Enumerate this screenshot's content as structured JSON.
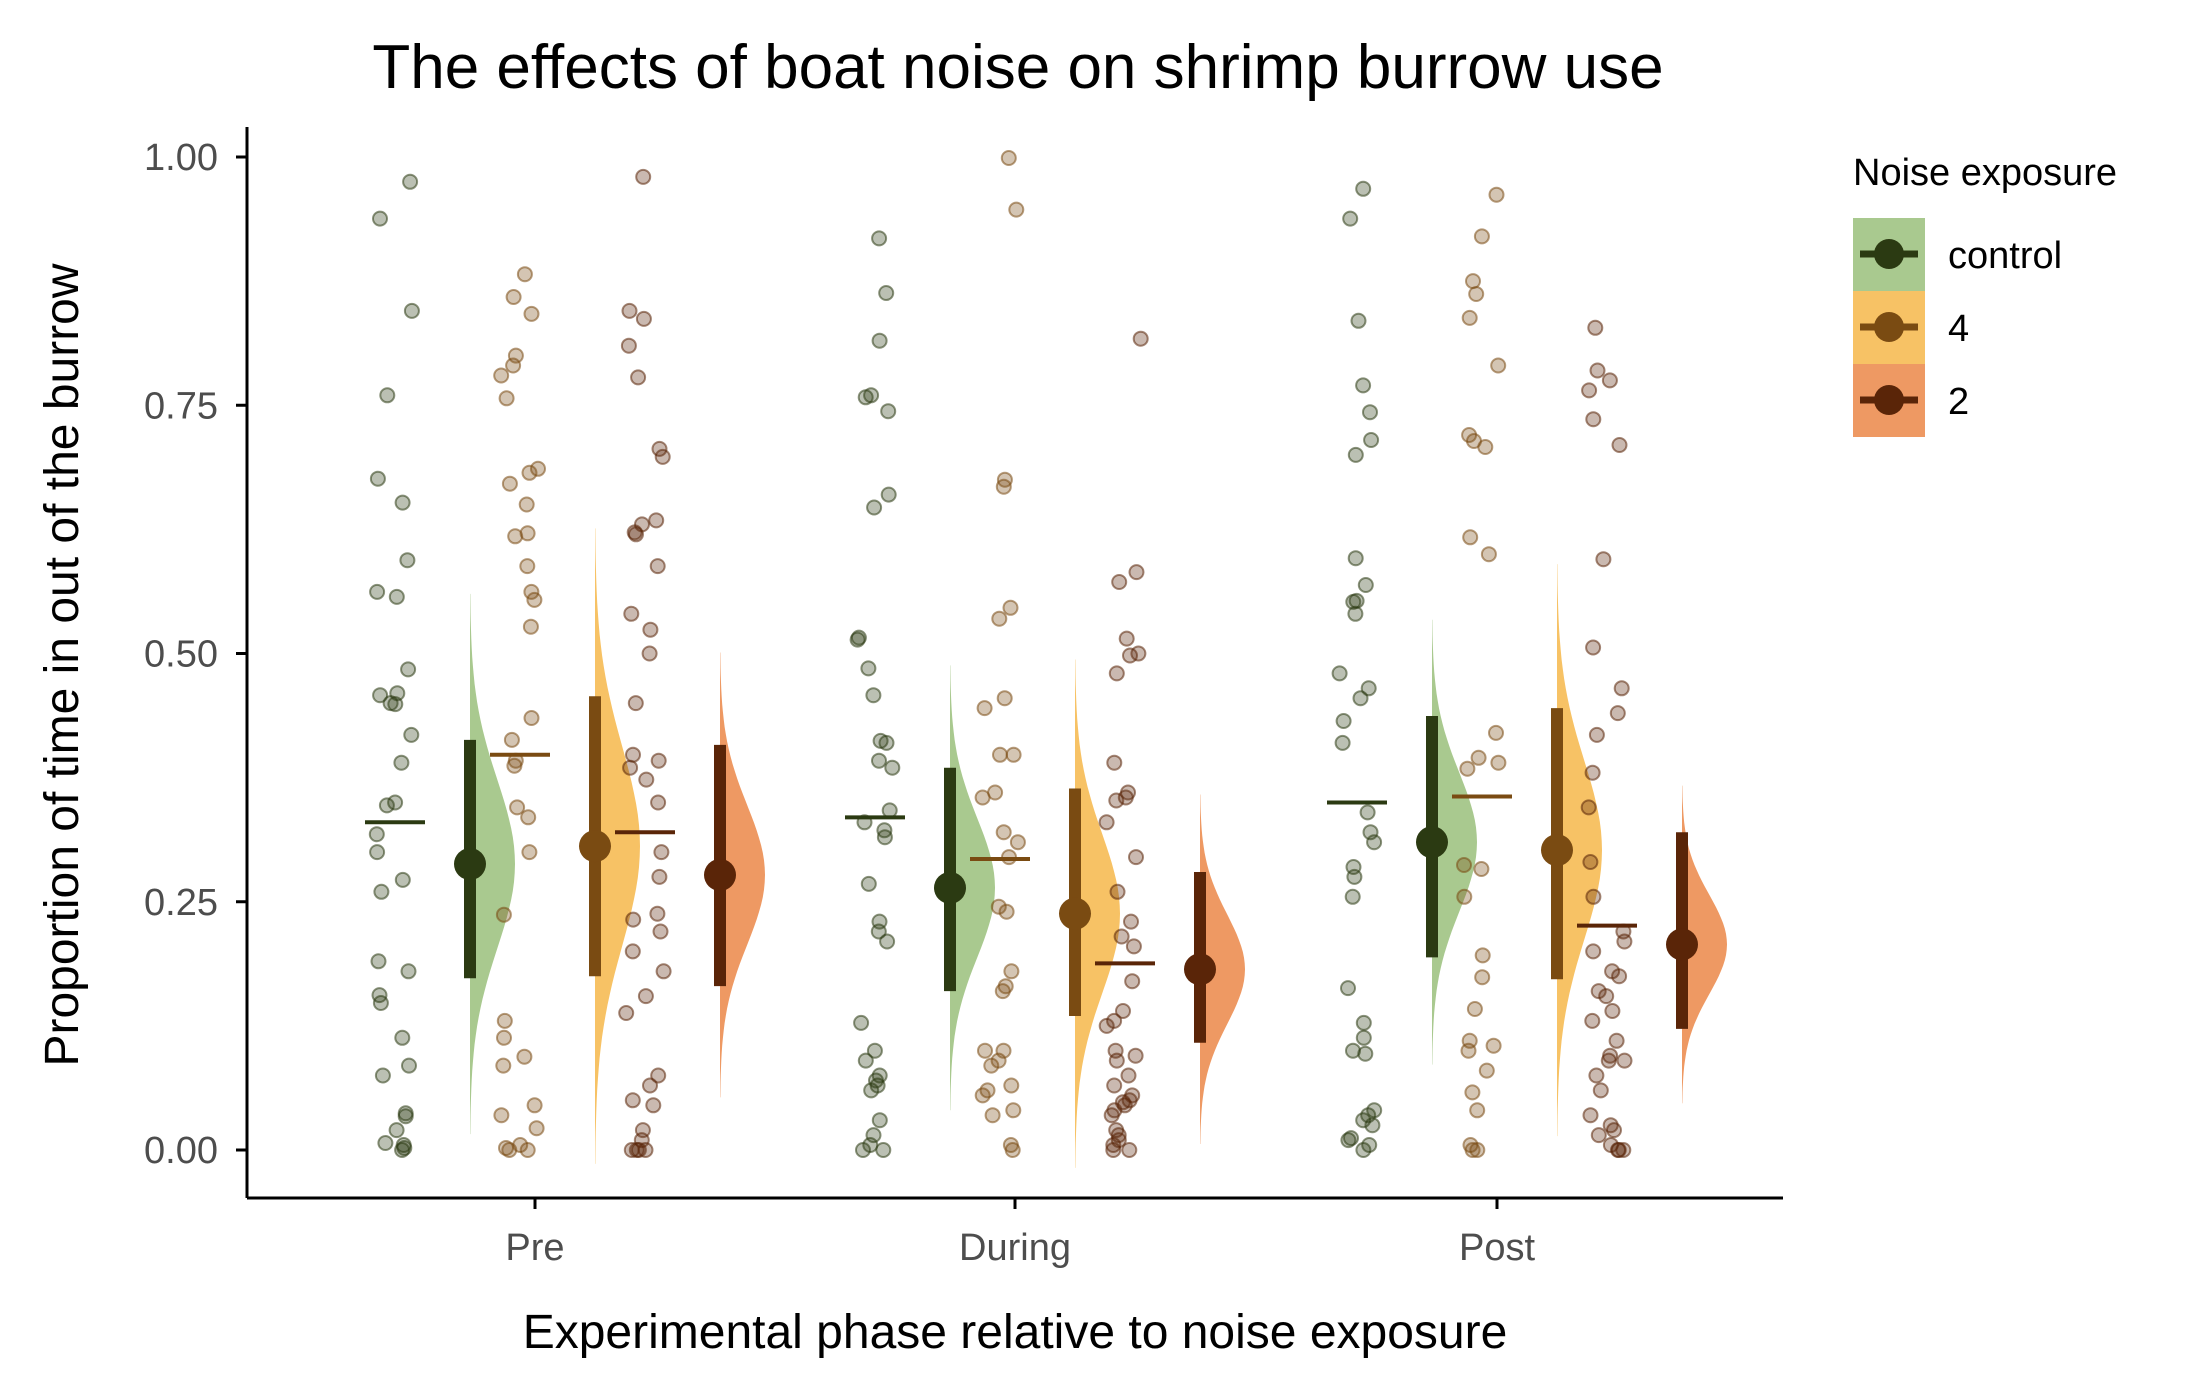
{
  "chart_data": {
    "type": "raincloud",
    "title": "The effects of boat noise on shrimp burrow use",
    "xlabel": "Experimental phase relative to noise exposure",
    "ylabel": "Proportion of time in out of the burrow",
    "categories": [
      "Pre",
      "During",
      "Post"
    ],
    "ylim": [
      0,
      1
    ],
    "yticks": [
      "0.00",
      "0.25",
      "0.50",
      "0.75",
      "1.00"
    ],
    "ytick_values": [
      0,
      0.25,
      0.5,
      0.75,
      1.0
    ],
    "grid": false,
    "legend": {
      "title": "Noise exposure",
      "position": "right"
    },
    "series": [
      {
        "name": "control",
        "fill": "#a9c98f",
        "color": "#2b3a12",
        "mean": [
          0.33,
          0.335,
          0.35
        ],
        "median": [
          0.288,
          0.264,
          0.31
        ],
        "interval_low": [
          0.173,
          0.16,
          0.194
        ],
        "interval_high": [
          0.413,
          0.385,
          0.437
        ],
        "density_sd": [
          0.085,
          0.07,
          0.07
        ],
        "points": [
          [
            0.975,
            0.938,
            0.845,
            0.76,
            0.676,
            0.652,
            0.594,
            0.562,
            0.557,
            0.484,
            0.46,
            0.458,
            0.45,
            0.449,
            0.418,
            0.39,
            0.35,
            0.347,
            0.318,
            0.3,
            0.272,
            0.26,
            0.19,
            0.18,
            0.156,
            0.148,
            0.113,
            0.085,
            0.075,
            0.037,
            0.034,
            0.02,
            0.007,
            0.005,
            0.002,
            0.0
          ],
          [
            0.918,
            0.863,
            0.815,
            0.76,
            0.758,
            0.744,
            0.66,
            0.647,
            0.516,
            0.514,
            0.485,
            0.458,
            0.412,
            0.41,
            0.392,
            0.385,
            0.342,
            0.33,
            0.322,
            0.315,
            0.268,
            0.23,
            0.22,
            0.21,
            0.128,
            0.1,
            0.09,
            0.075,
            0.07,
            0.065,
            0.06,
            0.03,
            0.015,
            0.005,
            0.0,
            0.0
          ],
          [
            0.968,
            0.938,
            0.835,
            0.77,
            0.743,
            0.715,
            0.7,
            0.596,
            0.569,
            0.553,
            0.552,
            0.54,
            0.48,
            0.465,
            0.455,
            0.432,
            0.41,
            0.34,
            0.32,
            0.31,
            0.285,
            0.275,
            0.255,
            0.163,
            0.128,
            0.113,
            0.1,
            0.097,
            0.04,
            0.035,
            0.03,
            0.025,
            0.012,
            0.01,
            0.005,
            0.0
          ]
        ]
      },
      {
        "name": "4",
        "fill": "#f7c265",
        "color": "#7a4b12",
        "mean": [
          0.398,
          0.293,
          0.356
        ],
        "median": [
          0.306,
          0.238,
          0.302
        ],
        "interval_low": [
          0.175,
          0.135,
          0.172
        ],
        "interval_high": [
          0.457,
          0.364,
          0.445
        ],
        "density_sd": [
          0.1,
          0.08,
          0.09
        ],
        "points": [
          [
            0.882,
            0.859,
            0.842,
            0.8,
            0.79,
            0.78,
            0.757,
            0.686,
            0.682,
            0.671,
            0.65,
            0.621,
            0.618,
            0.588,
            0.562,
            0.554,
            0.527,
            0.435,
            0.413,
            0.392,
            0.387,
            0.345,
            0.335,
            0.3,
            0.237,
            0.13,
            0.113,
            0.094,
            0.085,
            0.045,
            0.035,
            0.022,
            0.005,
            0.002,
            0.0,
            0.0
          ],
          [
            0.999,
            0.947,
            0.675,
            0.668,
            0.546,
            0.535,
            0.455,
            0.445,
            0.398,
            0.398,
            0.36,
            0.355,
            0.32,
            0.31,
            0.295,
            0.245,
            0.24,
            0.18,
            0.165,
            0.16,
            0.1,
            0.1,
            0.09,
            0.085,
            0.065,
            0.06,
            0.055,
            0.04,
            0.035,
            0.005,
            0.0
          ],
          [
            0.962,
            0.92,
            0.875,
            0.862,
            0.838,
            0.79,
            0.72,
            0.714,
            0.708,
            0.617,
            0.6,
            0.42,
            0.395,
            0.39,
            0.384,
            0.287,
            0.283,
            0.255,
            0.196,
            0.174,
            0.142,
            0.11,
            0.105,
            0.1,
            0.08,
            0.058,
            0.04,
            0.005,
            0.0,
            0.0
          ]
        ]
      },
      {
        "name": "2",
        "fill": "#ee9963",
        "color": "#5a2508",
        "mean": [
          0.32,
          0.188,
          0.226
        ],
        "median": [
          0.277,
          0.182,
          0.207
        ],
        "interval_low": [
          0.165,
          0.108,
          0.122
        ],
        "interval_high": [
          0.408,
          0.28,
          0.32
        ],
        "density_sd": [
          0.07,
          0.055,
          0.05
        ],
        "points": [
          [
            0.98,
            0.845,
            0.837,
            0.81,
            0.778,
            0.706,
            0.698,
            0.634,
            0.63,
            0.622,
            0.62,
            0.588,
            0.54,
            0.524,
            0.5,
            0.45,
            0.398,
            0.392,
            0.385,
            0.373,
            0.35,
            0.3,
            0.275,
            0.238,
            0.232,
            0.22,
            0.2,
            0.18,
            0.155,
            0.138,
            0.075,
            0.065,
            0.05,
            0.045,
            0.02,
            0.01,
            0.0,
            0.0,
            0.0,
            0.0
          ],
          [
            0.817,
            0.582,
            0.572,
            0.515,
            0.5,
            0.498,
            0.48,
            0.39,
            0.36,
            0.355,
            0.352,
            0.33,
            0.295,
            0.26,
            0.23,
            0.215,
            0.205,
            0.17,
            0.14,
            0.13,
            0.125,
            0.1,
            0.095,
            0.09,
            0.075,
            0.065,
            0.055,
            0.05,
            0.048,
            0.045,
            0.04,
            0.035,
            0.02,
            0.015,
            0.01,
            0.005,
            0.0,
            0.0
          ],
          [
            0.828,
            0.785,
            0.775,
            0.765,
            0.736,
            0.71,
            0.595,
            0.506,
            0.465,
            0.44,
            0.418,
            0.38,
            0.345,
            0.29,
            0.255,
            0.22,
            0.21,
            0.2,
            0.18,
            0.175,
            0.16,
            0.155,
            0.14,
            0.13,
            0.11,
            0.095,
            0.09,
            0.09,
            0.075,
            0.06,
            0.035,
            0.025,
            0.02,
            0.015,
            0.005,
            0.0,
            0.0,
            0.0
          ]
        ]
      }
    ]
  }
}
